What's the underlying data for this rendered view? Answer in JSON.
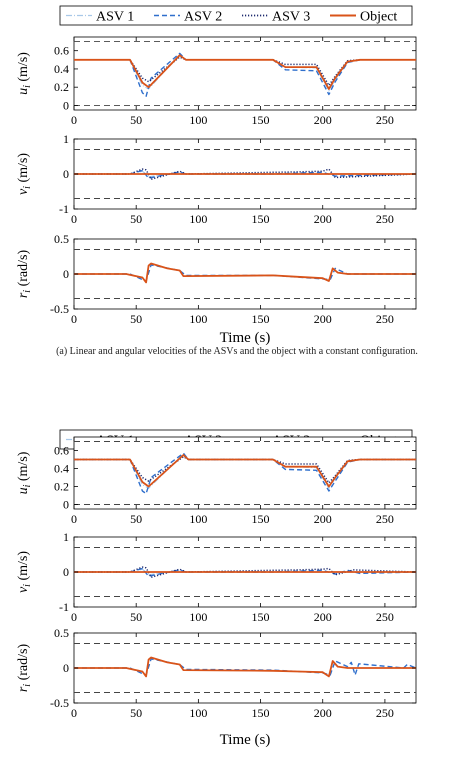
{
  "chart_data": [
    {
      "type": "line",
      "legend": {
        "placement": "top",
        "entries": [
          "ASV 1",
          "ASV 2",
          "ASV 3",
          "Object"
        ]
      },
      "series_styles": [
        {
          "name": "ASV 1",
          "color": "#a8c8e8",
          "dash": "dashdot"
        },
        {
          "name": "ASV 2",
          "color": "#2f6fcc",
          "dash": "dashed"
        },
        {
          "name": "ASV 3",
          "color": "#1c2a6e",
          "dash": "dotted"
        },
        {
          "name": "Object",
          "color": "#d95319",
          "dash": "solid"
        }
      ],
      "xlabel": "Time (s)",
      "xlim": [
        0,
        275
      ],
      "xticks": [
        0,
        50,
        100,
        150,
        200,
        250
      ],
      "caption": "(a) Linear and angular velocities of the ASVs and the object with a constant configuration.",
      "panels": [
        {
          "ylabel": "u_i (m/s)",
          "ylim": [
            -0.05,
            0.75
          ],
          "yticks": [
            "0",
            "0.2",
            "0.4",
            "0.6"
          ],
          "ytick_values": [
            0,
            0.2,
            0.4,
            0.6
          ],
          "bounds": [
            0,
            0.7
          ],
          "series": [
            {
              "name": "Object",
              "x": [
                0,
                45,
                55,
                60,
                85,
                90,
                160,
                170,
                195,
                205,
                210,
                220,
                230,
                275
              ],
              "y": [
                0.5,
                0.5,
                0.25,
                0.2,
                0.55,
                0.5,
                0.5,
                0.42,
                0.42,
                0.18,
                0.3,
                0.48,
                0.5,
                0.5
              ]
            },
            {
              "name": "ASV 1",
              "x": [
                0,
                45,
                55,
                60,
                85,
                90,
                160,
                170,
                195,
                205,
                210,
                220,
                230,
                275
              ],
              "y": [
                0.5,
                0.5,
                0.22,
                0.18,
                0.56,
                0.5,
                0.5,
                0.42,
                0.41,
                0.16,
                0.28,
                0.48,
                0.5,
                0.5
              ]
            },
            {
              "name": "ASV 2",
              "x": [
                0,
                45,
                55,
                58,
                62,
                85,
                90,
                160,
                170,
                195,
                205,
                210,
                220,
                230,
                275
              ],
              "y": [
                0.5,
                0.5,
                0.14,
                0.1,
                0.3,
                0.57,
                0.5,
                0.5,
                0.39,
                0.38,
                0.12,
                0.26,
                0.47,
                0.5,
                0.5
              ]
            },
            {
              "name": "ASV 3",
              "x": [
                0,
                45,
                55,
                60,
                85,
                90,
                160,
                170,
                195,
                205,
                210,
                220,
                230,
                275
              ],
              "y": [
                0.5,
                0.5,
                0.3,
                0.26,
                0.53,
                0.5,
                0.5,
                0.45,
                0.45,
                0.22,
                0.32,
                0.49,
                0.5,
                0.5
              ]
            }
          ]
        },
        {
          "ylabel": "v_i (m/s)",
          "ylim": [
            -1,
            1
          ],
          "yticks": [
            "-1",
            "0",
            "1"
          ],
          "ytick_values": [
            -1,
            0,
            1
          ],
          "bounds": [
            -0.7,
            0.7
          ],
          "series": [
            {
              "name": "Object",
              "x": [
                0,
                275
              ],
              "y": [
                0,
                0
              ]
            },
            {
              "name": "ASV 1",
              "x": [
                0,
                45,
                55,
                60,
                85,
                90,
                275
              ],
              "y": [
                0,
                0,
                0.08,
                -0.08,
                0.05,
                0,
                0
              ]
            },
            {
              "name": "ASV 2",
              "x": [
                0,
                45,
                55,
                60,
                85,
                90,
                160,
                200,
                210,
                275
              ],
              "y": [
                0,
                0,
                0.1,
                -0.12,
                0.06,
                0,
                0,
                0.05,
                -0.06,
                0
              ]
            },
            {
              "name": "ASV 3",
              "x": [
                0,
                45,
                55,
                58,
                62,
                85,
                90,
                160,
                180,
                200,
                205,
                210,
                275
              ],
              "y": [
                0,
                0,
                0.14,
                0.12,
                -0.15,
                0.08,
                0,
                0.05,
                0.06,
                0.08,
                0.14,
                -0.1,
                0
              ]
            }
          ]
        },
        {
          "ylabel": "r_i (rad/s)",
          "ylim": [
            -0.5,
            0.5
          ],
          "yticks": [
            "-0.5",
            "0",
            "0.5"
          ],
          "ytick_values": [
            -0.5,
            0,
            0.5
          ],
          "bounds": [
            -0.35,
            0.35
          ],
          "series": [
            {
              "name": "Object",
              "x": [
                0,
                42,
                55,
                58,
                60,
                62,
                75,
                85,
                88,
                160,
                180,
                200,
                205,
                208,
                212,
                220,
                275
              ],
              "y": [
                0,
                0,
                -0.05,
                -0.12,
                0.12,
                0.15,
                0.08,
                0.05,
                -0.03,
                -0.02,
                -0.04,
                -0.06,
                -0.1,
                0.08,
                0.02,
                0,
                0
              ]
            },
            {
              "name": "ASV 2",
              "x": [
                0,
                45,
                55,
                58,
                62,
                85,
                90,
                160,
                200,
                206,
                210,
                220,
                275
              ],
              "y": [
                0,
                0,
                -0.08,
                -0.1,
                0.13,
                0.05,
                -0.02,
                -0.02,
                -0.07,
                -0.08,
                0.08,
                0,
                0
              ]
            }
          ]
        }
      ]
    },
    {
      "type": "line",
      "legend": {
        "placement": "top",
        "entries": [
          "ASV 1",
          "ASV 2",
          "ASV 3",
          "Object"
        ]
      },
      "xlabel": "Time (s)",
      "xlim": [
        0,
        275
      ],
      "xticks": [
        0,
        50,
        100,
        150,
        200,
        250
      ],
      "panels": [
        {
          "ylabel": "u_i (m/s)",
          "ylim": [
            -0.05,
            0.75
          ],
          "yticks": [
            "0",
            "0.2",
            "0.4",
            "0.6"
          ],
          "ytick_values": [
            0,
            0.2,
            0.4,
            0.6
          ],
          "bounds": [
            0,
            0.7
          ],
          "series": [
            {
              "name": "Object",
              "x": [
                0,
                45,
                55,
                60,
                88,
                92,
                160,
                170,
                195,
                205,
                210,
                220,
                230,
                275
              ],
              "y": [
                0.5,
                0.5,
                0.25,
                0.2,
                0.55,
                0.5,
                0.5,
                0.42,
                0.42,
                0.2,
                0.3,
                0.48,
                0.5,
                0.5
              ]
            },
            {
              "name": "ASV 1",
              "x": [
                0,
                45,
                55,
                60,
                88,
                92,
                160,
                170,
                195,
                205,
                210,
                220,
                230,
                275
              ],
              "y": [
                0.5,
                0.5,
                0.22,
                0.18,
                0.56,
                0.5,
                0.5,
                0.42,
                0.41,
                0.18,
                0.29,
                0.48,
                0.5,
                0.5
              ]
            },
            {
              "name": "ASV 2",
              "x": [
                0,
                45,
                55,
                58,
                62,
                88,
                92,
                160,
                170,
                195,
                205,
                210,
                220,
                230,
                275
              ],
              "y": [
                0.5,
                0.5,
                0.15,
                0.12,
                0.3,
                0.57,
                0.5,
                0.5,
                0.39,
                0.38,
                0.15,
                0.26,
                0.47,
                0.5,
                0.5
              ]
            },
            {
              "name": "ASV 3",
              "x": [
                0,
                45,
                55,
                60,
                88,
                92,
                160,
                170,
                195,
                205,
                210,
                220,
                230,
                275
              ],
              "y": [
                0.5,
                0.5,
                0.3,
                0.26,
                0.53,
                0.5,
                0.5,
                0.45,
                0.45,
                0.24,
                0.32,
                0.49,
                0.5,
                0.5
              ]
            }
          ]
        },
        {
          "ylabel": "v_i (m/s)",
          "ylim": [
            -1,
            1
          ],
          "yticks": [
            "-1",
            "0",
            "1"
          ],
          "ytick_values": [
            -1,
            0,
            1
          ],
          "bounds": [
            -0.7,
            0.7
          ],
          "series": [
            {
              "name": "Object",
              "x": [
                0,
                275
              ],
              "y": [
                0,
                0
              ]
            },
            {
              "name": "ASV 1",
              "x": [
                0,
                45,
                55,
                60,
                85,
                90,
                275
              ],
              "y": [
                0,
                0,
                0.08,
                -0.08,
                0.05,
                0,
                0
              ]
            },
            {
              "name": "ASV 2",
              "x": [
                0,
                45,
                55,
                60,
                85,
                90,
                160,
                200,
                210,
                220,
                230,
                275
              ],
              "y": [
                0,
                0,
                0.1,
                -0.12,
                0.06,
                0,
                0,
                0.05,
                -0.06,
                0.05,
                -0.04,
                0
              ]
            },
            {
              "name": "ASV 3",
              "x": [
                0,
                45,
                55,
                58,
                62,
                85,
                90,
                160,
                180,
                200,
                205,
                210,
                225,
                275
              ],
              "y": [
                0,
                0,
                0.14,
                0.12,
                -0.15,
                0.08,
                0,
                0.05,
                0.06,
                0.08,
                0.1,
                -0.08,
                0.06,
                0
              ]
            }
          ]
        },
        {
          "ylabel": "r_i (rad/s)",
          "ylim": [
            -0.5,
            0.5
          ],
          "yticks": [
            "-0.5",
            "0",
            "0.5"
          ],
          "ytick_values": [
            -0.5,
            0,
            0.5
          ],
          "bounds": [
            -0.35,
            0.35
          ],
          "series": [
            {
              "name": "Object",
              "x": [
                0,
                42,
                55,
                58,
                60,
                62,
                75,
                85,
                88,
                160,
                180,
                200,
                205,
                208,
                212,
                220,
                275
              ],
              "y": [
                0,
                0,
                -0.05,
                -0.12,
                0.12,
                0.15,
                0.08,
                0.05,
                -0.03,
                -0.04,
                -0.05,
                -0.06,
                -0.12,
                0.1,
                0.02,
                0,
                0
              ]
            },
            {
              "name": "ASV 2",
              "x": [
                0,
                45,
                55,
                58,
                62,
                85,
                90,
                160,
                200,
                206,
                210,
                220,
                223,
                226,
                229,
                265,
                268,
                275
              ],
              "y": [
                0,
                0,
                -0.08,
                -0.1,
                0.13,
                0.05,
                -0.02,
                -0.03,
                -0.07,
                -0.1,
                0.1,
                0.02,
                0.08,
                -0.1,
                0.06,
                0,
                0.05,
                0
              ]
            }
          ]
        }
      ]
    }
  ]
}
